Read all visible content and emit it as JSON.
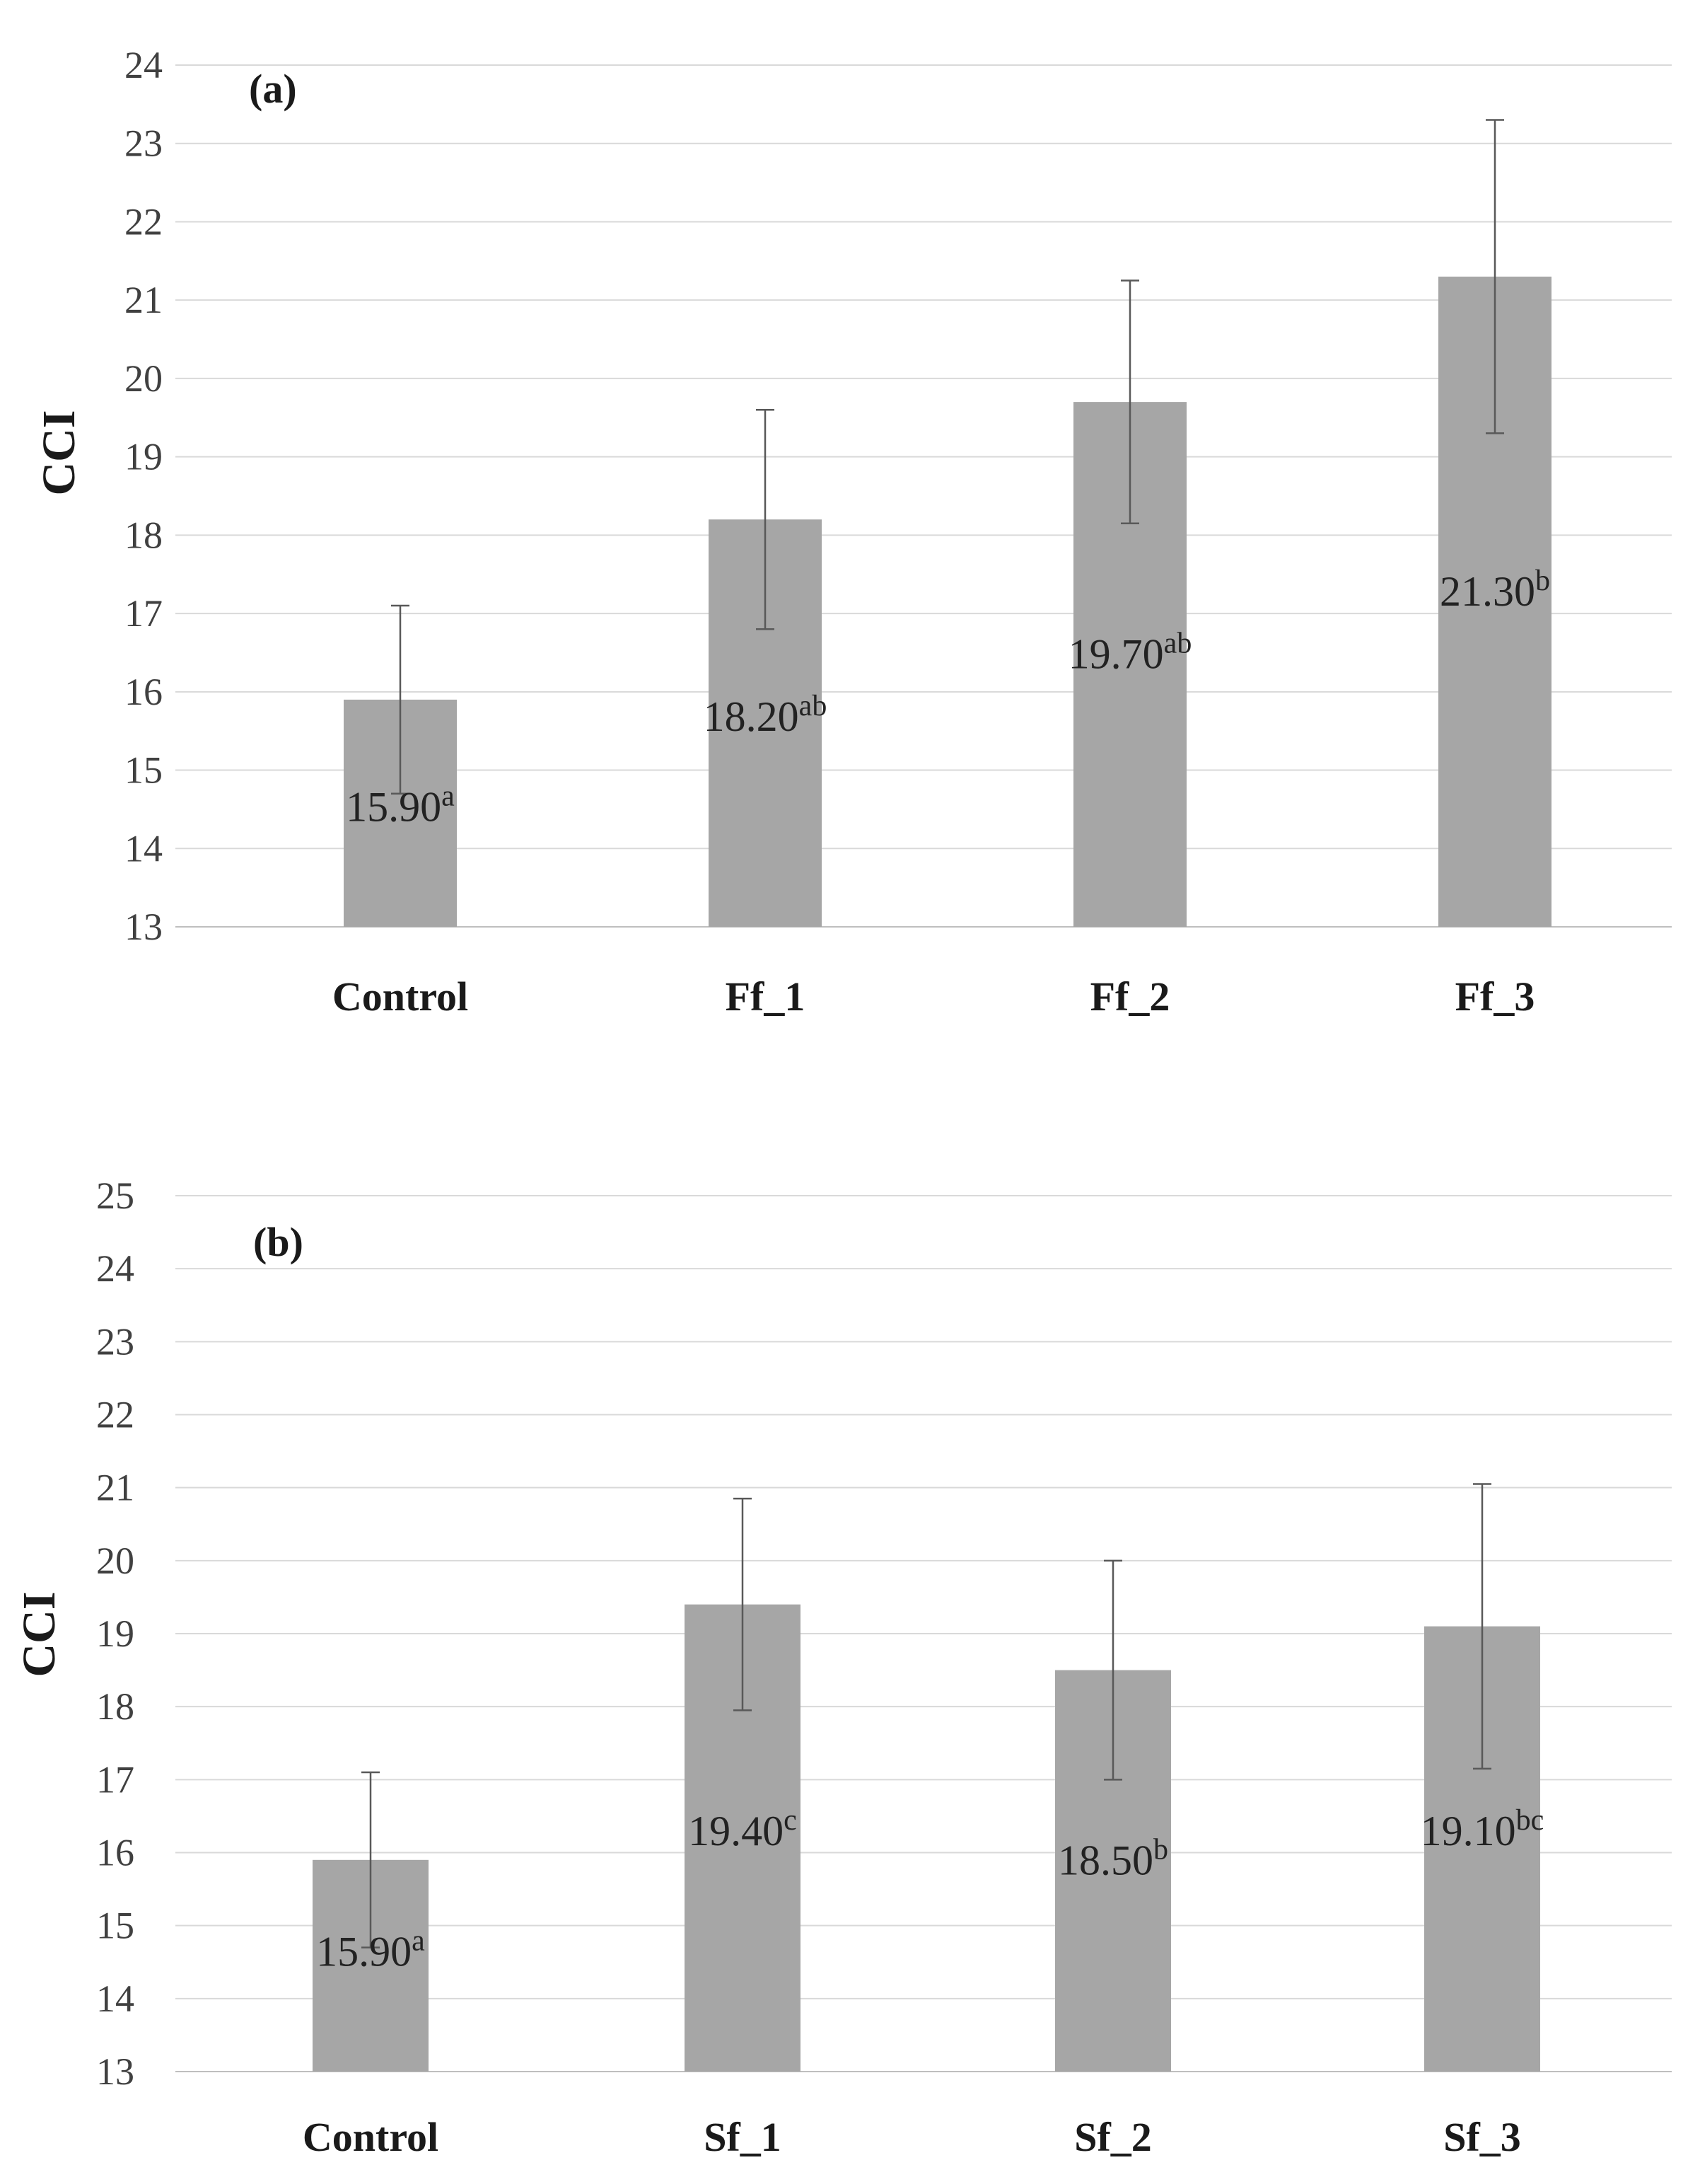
{
  "chart_data": [
    {
      "type": "bar",
      "panel_label": "(a)",
      "ylabel": "CCI",
      "xlabel": "",
      "ylim": [
        13,
        24
      ],
      "yticks": [
        "13",
        "14",
        "15",
        "16",
        "17",
        "18",
        "19",
        "20",
        "21",
        "22",
        "23",
        "24"
      ],
      "grid": true,
      "categories": [
        "Control",
        "Ff_1",
        "Ff_2",
        "Ff_3"
      ],
      "values": [
        15.9,
        18.2,
        19.7,
        21.3
      ],
      "error_low": [
        14.7,
        16.8,
        18.15,
        19.3
      ],
      "error_high": [
        17.1,
        19.6,
        21.25,
        23.3
      ],
      "labels": [
        {
          "value": "15.90",
          "letter": "a",
          "y": 14.35
        },
        {
          "value": "18.20",
          "letter": "ab",
          "y": 15.5
        },
        {
          "value": "19.70",
          "letter": "ab",
          "y": 16.3
        },
        {
          "value": "21.30",
          "letter": "b",
          "y": 17.1
        }
      ],
      "colors": {
        "bar": "#a6a6a6",
        "error": "#595959",
        "grid": "#d9d9d9"
      }
    },
    {
      "type": "bar",
      "panel_label": "(b)",
      "ylabel": "CCI",
      "xlabel": "",
      "ylim": [
        13,
        25
      ],
      "yticks": [
        "13",
        "14",
        "15",
        "16",
        "17",
        "18",
        "19",
        "20",
        "21",
        "22",
        "23",
        "24",
        "25"
      ],
      "grid": true,
      "categories": [
        "Control",
        "Sf_1",
        "Sf_2",
        "Sf_3"
      ],
      "values": [
        15.9,
        19.4,
        18.5,
        19.1
      ],
      "error_low": [
        14.7,
        17.95,
        17.0,
        17.15
      ],
      "error_high": [
        17.1,
        20.85,
        20.0,
        21.05
      ],
      "labels": [
        {
          "value": "15.90",
          "letter": "a",
          "y": 14.45
        },
        {
          "value": "19.40",
          "letter": "c",
          "y": 16.1
        },
        {
          "value": "18.50",
          "letter": "b",
          "y": 15.7
        },
        {
          "value": "19.10",
          "letter": "bc",
          "y": 16.1
        }
      ],
      "colors": {
        "bar": "#a6a6a6",
        "error": "#595959",
        "grid": "#d9d9d9"
      }
    }
  ]
}
